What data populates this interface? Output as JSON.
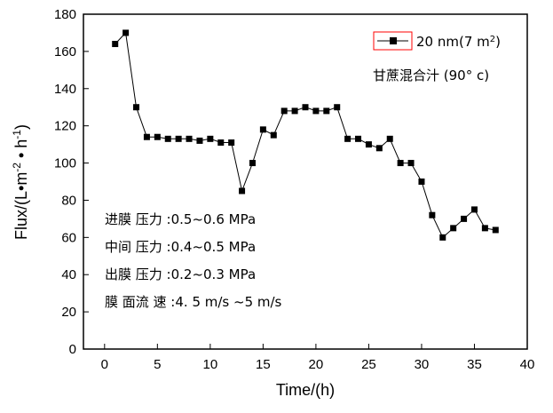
{
  "chart_data": {
    "type": "line",
    "title": "",
    "xlabel": "Time/(h)",
    "ylabel": "Flux/(L•m",
    "ylabel_sup1": "-2",
    "ylabel_mid": " • h",
    "ylabel_sup2": "-1",
    "ylabel_end": ")",
    "xlim": [
      -2,
      40
    ],
    "ylim": [
      0,
      180
    ],
    "xticks": [
      0,
      5,
      10,
      15,
      20,
      25,
      30,
      35,
      40
    ],
    "yticks": [
      0,
      20,
      40,
      60,
      80,
      100,
      120,
      140,
      160,
      180
    ],
    "grid": false,
    "legend_position": "top-right",
    "series": [
      {
        "name": "20 nm(7 m²)",
        "marker": "square",
        "color": "#000000",
        "x": [
          1,
          2,
          3,
          4,
          5,
          6,
          7,
          8,
          9,
          10,
          11,
          12,
          13,
          14,
          15,
          16,
          17,
          18,
          19,
          20,
          21,
          22,
          23,
          24,
          25,
          26,
          27,
          28,
          29,
          30,
          31,
          32,
          33,
          34,
          35,
          36,
          37
        ],
        "y": [
          164,
          170,
          130,
          114,
          114,
          113,
          113,
          113,
          112,
          113,
          111,
          111,
          85,
          100,
          118,
          115,
          128,
          128,
          130,
          128,
          128,
          130,
          113,
          113,
          110,
          108,
          113,
          100,
          100,
          90,
          72,
          60,
          65,
          70,
          75,
          65,
          64
        ]
      }
    ],
    "legend": {
      "label_main": "20 nm(7 m",
      "label_sup": "2",
      "label_end": ")",
      "subtitle": "甘蔗混合汁 (90° c)",
      "box_color": "#ff0000"
    },
    "annotations": [
      "进膜  压力 :0.5~0.6 MPa",
      "中间  压力 :0.4~0.5 MPa",
      "出膜  压力 :0.2~0.3 MPa",
      "膜  面流  速 :4. 5 m/s ~5  m/s"
    ]
  }
}
